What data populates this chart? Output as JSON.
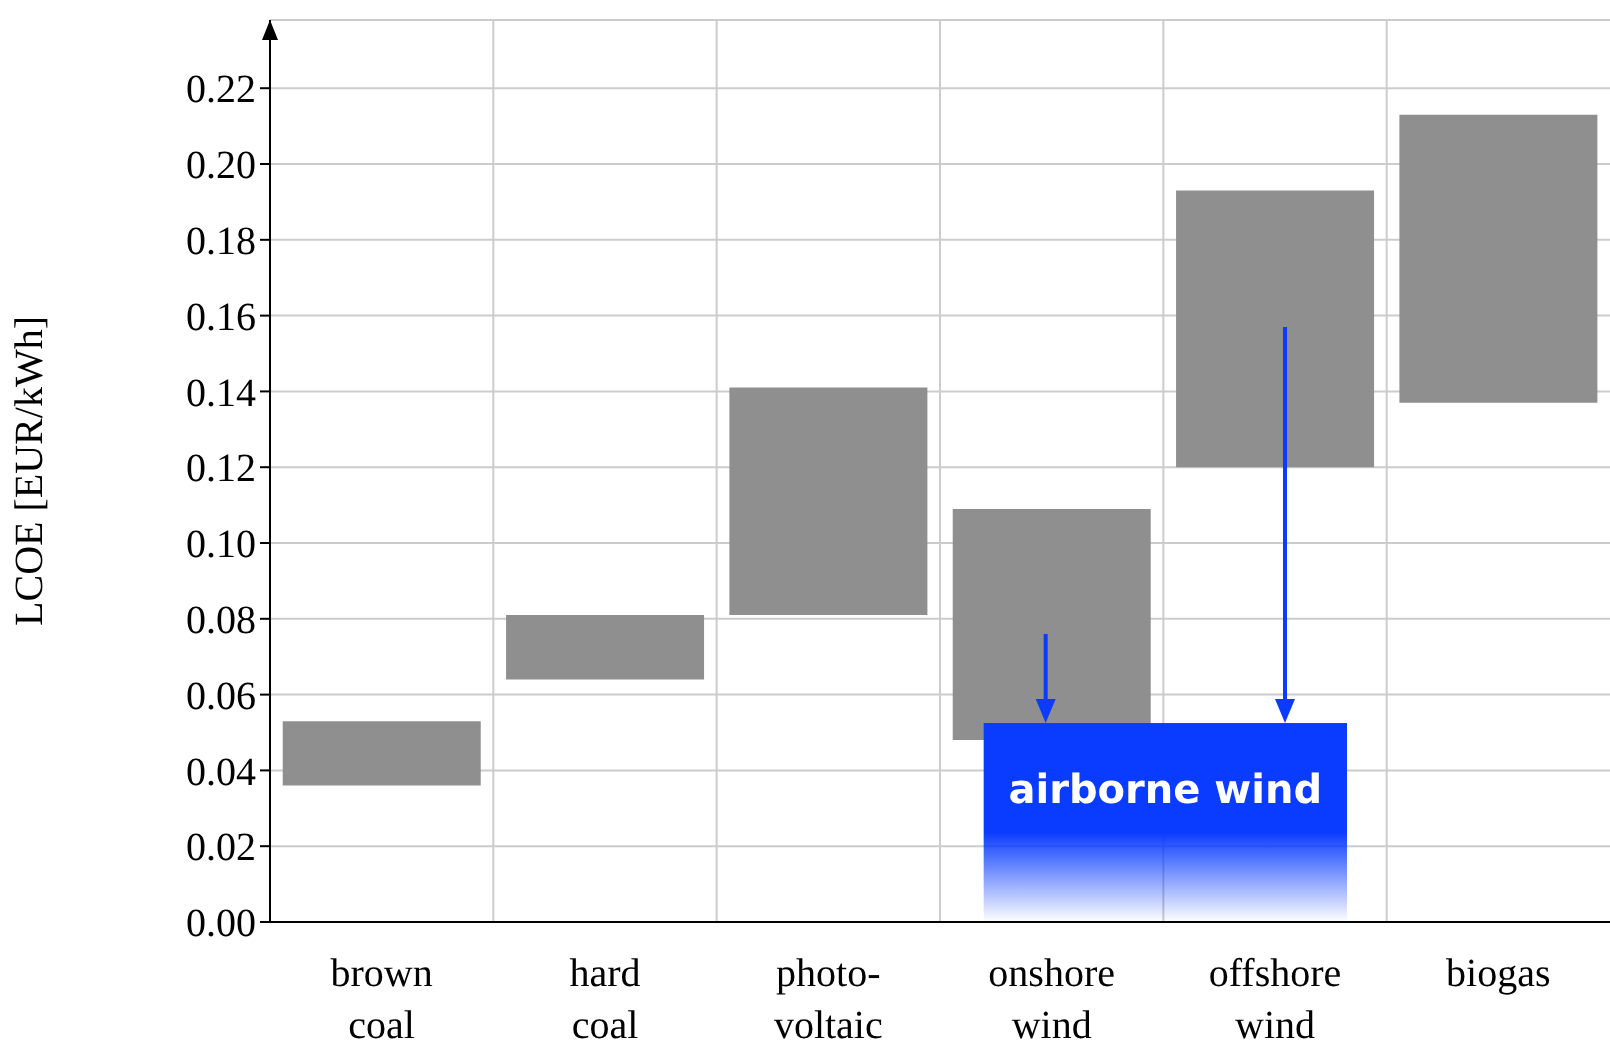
{
  "chart_data": {
    "type": "bar",
    "ylabel": "LCOE [EUR/kWh]",
    "categories": [
      "brown coal",
      "hard coal",
      "photo-voltaic",
      "onshore wind",
      "offshore wind",
      "biogas"
    ],
    "base": [
      0.036,
      0.064,
      0.081,
      0.048,
      0.12,
      0.137
    ],
    "values": [
      0.017,
      0.017,
      0.06,
      0.061,
      0.073,
      0.076
    ],
    "color": "#8f8f8f",
    "ylim": [
      0,
      0.238
    ],
    "yticks": [
      {
        "value": 0,
        "label": "0.00"
      },
      0.02,
      0.04,
      0.06,
      0.08,
      {
        "value": 0.1,
        "label": "0.10"
      },
      0.12,
      0.14,
      0.16,
      0.18,
      {
        "value": 0.2,
        "label": "0.20"
      },
      0.22
    ],
    "grid": true,
    "annotations": [
      "airborne wind"
    ]
  }
}
